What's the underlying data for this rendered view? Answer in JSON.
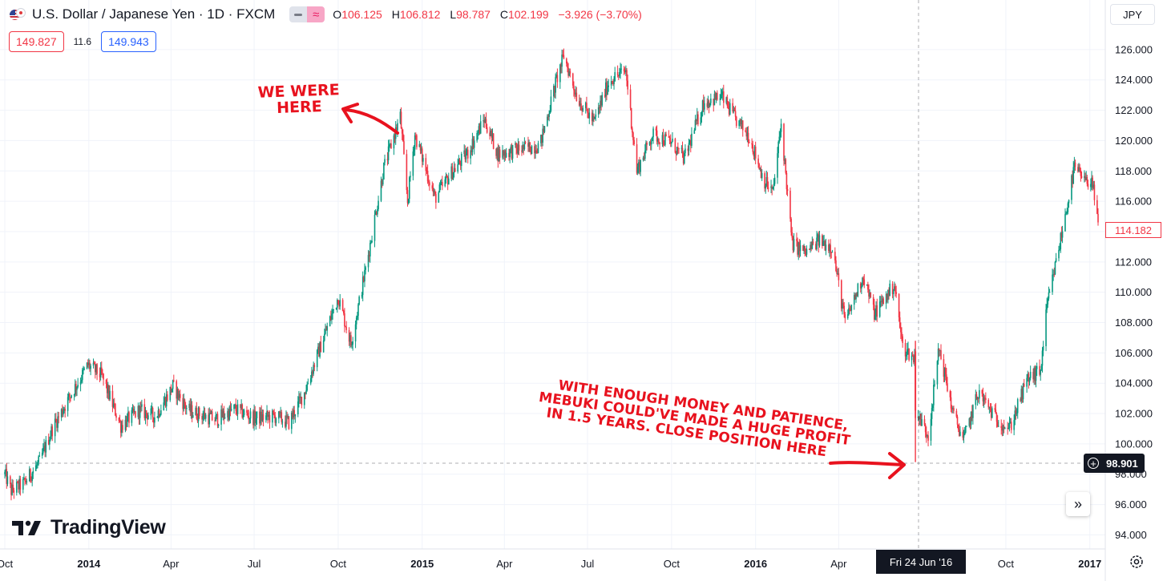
{
  "header": {
    "symbol": "U.S. Dollar / Japanese Yen · 1D · FXCM",
    "ohlc": {
      "o_label": "O",
      "o": "106.125",
      "h_label": "H",
      "h": "106.812",
      "l_label": "L",
      "l": "98.787",
      "c_label": "C",
      "c": "102.199",
      "change": "−3.926 (−3.70%)"
    },
    "sell_price": "149.827",
    "spread": "11.6",
    "buy_price": "149.943",
    "currency": "JPY"
  },
  "last_price_label": "114.182",
  "crosshair": {
    "price": "98.901",
    "date": "Fri 24 Jun '16"
  },
  "logo_text": "TradingView",
  "annotations": {
    "top": [
      "WE WERE",
      "HERE"
    ],
    "bottom": [
      "WITH ENOUGH MONEY AND PATIENCE,",
      "MEBUKI COULD'VE MADE A HUGE PROFIT",
      "IN 1.5 YEARS. CLOSE POSITION HERE"
    ]
  },
  "colors": {
    "up": "#089981",
    "down": "#f23645",
    "annotation": "#e8121e",
    "crosshair": "#131722"
  },
  "icons": [
    "flag-icon",
    "minus-icon",
    "approx-icon",
    "plus-icon",
    "double-chevron-right-icon",
    "settings-icon",
    "tradingview-logo-icon",
    "arrow-icon"
  ],
  "chart_data": {
    "type": "candlestick",
    "title": "U.S. Dollar / Japanese Yen · 1D · FXCM",
    "ylim": [
      93.3,
      126.8
    ],
    "y_ticks": [
      "126.000",
      "124.000",
      "122.000",
      "120.000",
      "118.000",
      "116.000",
      "114.000",
      "112.000",
      "110.000",
      "108.000",
      "106.000",
      "104.000",
      "102.000",
      "100.000",
      "98.000",
      "96.000",
      "94.000"
    ],
    "x_ticks": [
      {
        "label": "Oct",
        "date": "2013-10-01",
        "year": false
      },
      {
        "label": "2014",
        "date": "2014-01-01",
        "year": true
      },
      {
        "label": "Apr",
        "date": "2014-04-01",
        "year": false
      },
      {
        "label": "Jul",
        "date": "2014-07-01",
        "year": false
      },
      {
        "label": "Oct",
        "date": "2014-10-01",
        "year": false
      },
      {
        "label": "2015",
        "date": "2015-01-01",
        "year": true
      },
      {
        "label": "Apr",
        "date": "2015-04-01",
        "year": false
      },
      {
        "label": "Jul",
        "date": "2015-07-01",
        "year": false
      },
      {
        "label": "Oct",
        "date": "2015-10-01",
        "year": false
      },
      {
        "label": "2016",
        "date": "2016-01-01",
        "year": true
      },
      {
        "label": "Apr",
        "date": "2016-04-01",
        "year": false
      },
      {
        "label": "Oct",
        "date": "2016-10-01",
        "year": false
      },
      {
        "label": "2017",
        "date": "2017-01-01",
        "year": true
      }
    ],
    "x_start": "2013-10-01",
    "x_end": "2017-01-10",
    "price_path": [
      [
        "2013-10-01",
        98.0
      ],
      [
        "2013-10-08",
        96.9
      ],
      [
        "2013-10-22",
        97.4
      ],
      [
        "2013-11-08",
        98.8
      ],
      [
        "2013-11-22",
        101.0
      ],
      [
        "2013-12-10",
        103.0
      ],
      [
        "2013-12-31",
        105.2
      ],
      [
        "2014-01-15",
        104.5
      ],
      [
        "2014-02-05",
        101.2
      ],
      [
        "2014-02-25",
        102.2
      ],
      [
        "2014-03-15",
        101.8
      ],
      [
        "2014-04-03",
        103.8
      ],
      [
        "2014-04-20",
        102.2
      ],
      [
        "2014-05-20",
        101.6
      ],
      [
        "2014-06-10",
        102.3
      ],
      [
        "2014-07-01",
        101.7
      ],
      [
        "2014-07-25",
        101.8
      ],
      [
        "2014-08-08",
        101.4
      ],
      [
        "2014-08-25",
        103.4
      ],
      [
        "2014-09-15",
        107.0
      ],
      [
        "2014-10-01",
        109.7
      ],
      [
        "2014-10-15",
        106.6
      ],
      [
        "2014-10-31",
        111.5
      ],
      [
        "2014-11-20",
        118.2
      ],
      [
        "2014-12-08",
        121.6
      ],
      [
        "2014-12-16",
        116.0
      ],
      [
        "2014-12-24",
        120.4
      ],
      [
        "2015-01-15",
        116.2
      ],
      [
        "2015-02-01",
        117.8
      ],
      [
        "2015-02-20",
        119.2
      ],
      [
        "2015-03-10",
        121.4
      ],
      [
        "2015-03-25",
        119.1
      ],
      [
        "2015-04-15",
        119.4
      ],
      [
        "2015-05-10",
        119.7
      ],
      [
        "2015-05-28",
        124.0
      ],
      [
        "2015-06-05",
        125.6
      ],
      [
        "2015-06-20",
        122.8
      ],
      [
        "2015-07-08",
        121.2
      ],
      [
        "2015-07-25",
        124.0
      ],
      [
        "2015-08-12",
        124.6
      ],
      [
        "2015-08-24",
        118.0
      ],
      [
        "2015-09-10",
        120.4
      ],
      [
        "2015-09-30",
        119.9
      ],
      [
        "2015-10-15",
        118.8
      ],
      [
        "2015-11-05",
        122.5
      ],
      [
        "2015-11-25",
        122.9
      ],
      [
        "2015-12-10",
        121.4
      ],
      [
        "2015-12-25",
        120.3
      ],
      [
        "2016-01-10",
        117.4
      ],
      [
        "2016-01-20",
        116.6
      ],
      [
        "2016-01-29",
        121.1
      ],
      [
        "2016-02-10",
        113.2
      ],
      [
        "2016-02-25",
        112.6
      ],
      [
        "2016-03-10",
        113.4
      ],
      [
        "2016-03-25",
        113.0
      ],
      [
        "2016-04-08",
        108.0
      ],
      [
        "2016-04-28",
        111.1
      ],
      [
        "2016-05-10",
        108.6
      ],
      [
        "2016-06-01",
        110.5
      ],
      [
        "2016-06-10",
        106.4
      ],
      [
        "2016-06-23",
        105.6
      ],
      [
        "2016-06-24",
        102.2
      ],
      [
        "2016-07-08",
        100.6
      ],
      [
        "2016-07-20",
        106.3
      ],
      [
        "2016-08-05",
        101.8
      ],
      [
        "2016-08-16",
        100.3
      ],
      [
        "2016-09-01",
        103.4
      ],
      [
        "2016-09-20",
        101.7
      ],
      [
        "2016-10-05",
        101.0
      ],
      [
        "2016-10-25",
        104.3
      ],
      [
        "2016-11-08",
        104.8
      ],
      [
        "2016-11-15",
        109.0
      ],
      [
        "2016-11-30",
        113.5
      ],
      [
        "2016-12-15",
        118.2
      ],
      [
        "2016-12-28",
        117.2
      ],
      [
        "2017-01-03",
        117.6
      ],
      [
        "2017-01-10",
        114.2
      ]
    ]
  }
}
